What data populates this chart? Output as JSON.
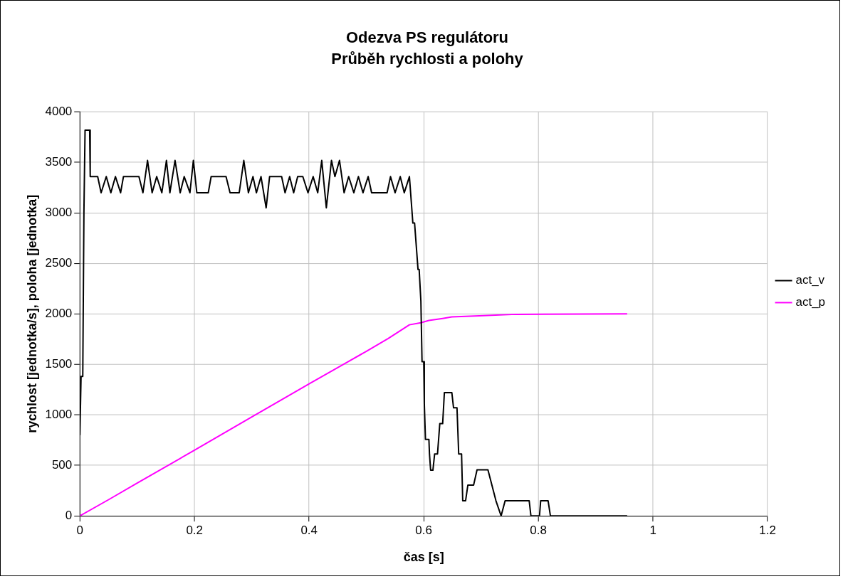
{
  "chart_data": {
    "type": "line",
    "title": "Odezva PS regulátoru",
    "subtitle": "Průběh rychlosti a polohy",
    "xlabel": "čas [s]",
    "ylabel": "rychlost [jednotka/s], poloha [jednotka]",
    "xlim": [
      0,
      1.2
    ],
    "xticks": [
      0,
      0.2,
      0.4,
      0.6,
      0.8,
      1,
      1.2
    ],
    "ylim": [
      0,
      4000
    ],
    "yticks": [
      0,
      500,
      1000,
      1500,
      2000,
      2500,
      3000,
      3500,
      4000
    ],
    "grid": true,
    "legend": "right",
    "marker": "none",
    "line_style": "solid",
    "series": [
      {
        "name": "act_v",
        "color": "#000000",
        "x": [
          0,
          0.002,
          0.005,
          0.007,
          0.009,
          0.011,
          0.017,
          0.018,
          0.031,
          0.037,
          0.046,
          0.054,
          0.062,
          0.071,
          0.076,
          0.103,
          0.11,
          0.118,
          0.126,
          0.134,
          0.143,
          0.151,
          0.157,
          0.166,
          0.175,
          0.182,
          0.192,
          0.198,
          0.204,
          0.224,
          0.229,
          0.255,
          0.262,
          0.278,
          0.286,
          0.294,
          0.302,
          0.308,
          0.316,
          0.325,
          0.331,
          0.352,
          0.358,
          0.366,
          0.373,
          0.38,
          0.389,
          0.398,
          0.407,
          0.415,
          0.422,
          0.43,
          0.439,
          0.445,
          0.453,
          0.461,
          0.469,
          0.478,
          0.486,
          0.494,
          0.503,
          0.509,
          0.536,
          0.542,
          0.55,
          0.559,
          0.566,
          0.575,
          0.581,
          0.584,
          0.59,
          0.592,
          0.595,
          0.597,
          0.6,
          0.601,
          0.603,
          0.609,
          0.61,
          0.612,
          0.616,
          0.619,
          0.624,
          0.628,
          0.633,
          0.636,
          0.649,
          0.652,
          0.658,
          0.661,
          0.666,
          0.668,
          0.673,
          0.677,
          0.687,
          0.693,
          0.712,
          0.726,
          0.735,
          0.742,
          0.784,
          0.787,
          0.802,
          0.804,
          0.817,
          0.821,
          0.955
        ],
        "values": [
          800,
          1380,
          1380,
          3000,
          3820,
          3820,
          3820,
          3360,
          3360,
          3200,
          3360,
          3200,
          3360,
          3200,
          3360,
          3360,
          3200,
          3520,
          3200,
          3360,
          3200,
          3520,
          3200,
          3520,
          3200,
          3360,
          3200,
          3520,
          3200,
          3200,
          3360,
          3360,
          3200,
          3200,
          3520,
          3200,
          3360,
          3200,
          3360,
          3050,
          3360,
          3360,
          3200,
          3360,
          3200,
          3360,
          3360,
          3200,
          3360,
          3200,
          3520,
          3050,
          3520,
          3360,
          3520,
          3200,
          3360,
          3200,
          3360,
          3200,
          3360,
          3200,
          3200,
          3360,
          3200,
          3360,
          3200,
          3360,
          2900,
          2900,
          2440,
          2440,
          2127,
          1527,
          1527,
          1109,
          757,
          757,
          613,
          452,
          452,
          613,
          613,
          913,
          913,
          1221,
          1221,
          1070,
          1070,
          613,
          613,
          149,
          149,
          305,
          305,
          456,
          456,
          149,
          0,
          149,
          149,
          0,
          0,
          149,
          149,
          0,
          0
        ]
      },
      {
        "name": "act_p",
        "color": "#ff00ff",
        "x": [
          0,
          0.05,
          0.1,
          0.2,
          0.3,
          0.4,
          0.5,
          0.538,
          0.575,
          0.595,
          0.609,
          0.633,
          0.649,
          0.689,
          0.761,
          0.955
        ],
        "values": [
          0,
          160,
          325,
          650,
          980,
          1307,
          1630,
          1756,
          1892,
          1912,
          1935,
          1955,
          1970,
          1980,
          1996,
          2000
        ]
      }
    ]
  }
}
